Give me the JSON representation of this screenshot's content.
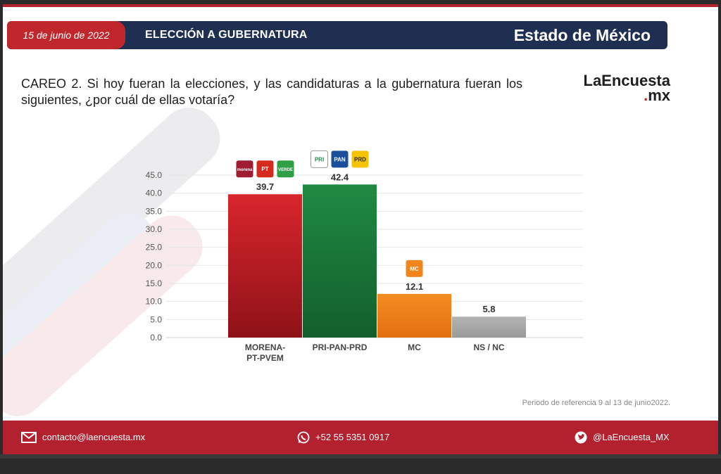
{
  "header": {
    "date": "15 de junio de 2022",
    "title": "ELECCIÓN A GUBERNATURA",
    "state": "Estado de México"
  },
  "question": "CAREO 2. Si hoy fueran la elecciones, y las candidaturas a la gubernatura fueran los siguientes, ¿por cuál de ellas votaría?",
  "logo": {
    "line1": "LaEncuesta",
    "line2": ".mx"
  },
  "reference": "Periodo de referencia 9 al 13 de junio2022.",
  "footer": {
    "email": "contacto@laencuesta.mx",
    "phone": "+52 55 5351 0917",
    "twitter": "@LaEncuesta_MX"
  },
  "colors": {
    "header_navy": "#1f2f52",
    "accent_red": "#c0272d",
    "bar_morena": "#c9232b",
    "bar_pri_pan_prd": "#1c7a3c",
    "bar_mc": "#f2841c",
    "bar_nsnc": "#a8a8a8"
  },
  "chart_data": {
    "type": "bar",
    "title": "",
    "xlabel": "",
    "ylabel": "",
    "categories": [
      "MORENA-\nPT-PVEM",
      "PRI-PAN-PRD",
      "MC",
      "NS / NC"
    ],
    "values": [
      39.7,
      42.4,
      12.1,
      5.8
    ],
    "value_labels": [
      "39.7",
      "42.4",
      "12.1",
      "5.8"
    ],
    "ylim": [
      0,
      45
    ],
    "yticks": [
      "0.0",
      "5.0",
      "10.0",
      "15.0",
      "20.0",
      "25.0",
      "30.0",
      "35.0",
      "40.0",
      "45.0"
    ],
    "grid": true,
    "legend": "none",
    "party_logos": [
      [
        {
          "label": "morena",
          "color": "#9e1b32"
        },
        {
          "label": "PT",
          "color": "#d52b1e"
        },
        {
          "label": "VERDE",
          "color": "#2f9e44"
        }
      ],
      [
        {
          "label": "PRI",
          "color": "#ffffff"
        },
        {
          "label": "PAN",
          "color": "#1a4f9c"
        },
        {
          "label": "PRD",
          "color": "#f5c400"
        }
      ],
      [
        {
          "label": "MC",
          "color": "#f2841c"
        }
      ],
      []
    ]
  }
}
